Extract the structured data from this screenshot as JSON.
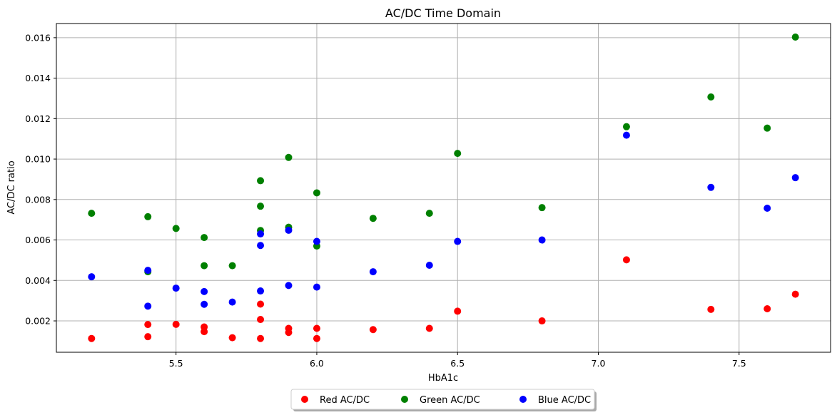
{
  "chart_data": {
    "type": "scatter",
    "title": "AC/DC Time Domain",
    "xlabel": "HbA1c",
    "ylabel": "AC/DC ratio",
    "xlim": [
      5.075,
      7.825
    ],
    "ylim": [
      0.00045,
      0.0167
    ],
    "xticks": [
      5.5,
      6.0,
      6.5,
      7.0,
      7.5
    ],
    "xtick_labels": [
      "5.5",
      "6.0",
      "6.5",
      "7.0",
      "7.5"
    ],
    "yticks": [
      0.002,
      0.004,
      0.006,
      0.008,
      0.01,
      0.012,
      0.014,
      0.016
    ],
    "ytick_labels": [
      "0.002",
      "0.004",
      "0.006",
      "0.008",
      "0.010",
      "0.012",
      "0.014",
      "0.016"
    ],
    "grid": true,
    "legend_position": "bottom-center-outside",
    "series": [
      {
        "name": "Red AC/DC",
        "color": "#ff0000",
        "points": [
          [
            5.2,
            0.00113
          ],
          [
            5.4,
            0.00182
          ],
          [
            5.4,
            0.00122
          ],
          [
            5.5,
            0.00183
          ],
          [
            5.6,
            0.00147
          ],
          [
            5.6,
            0.0017
          ],
          [
            5.7,
            0.00117
          ],
          [
            5.8,
            0.00113
          ],
          [
            5.8,
            0.00283
          ],
          [
            5.8,
            0.00207
          ],
          [
            5.9,
            0.00163
          ],
          [
            5.9,
            0.00143
          ],
          [
            6.0,
            0.00163
          ],
          [
            6.0,
            0.00113
          ],
          [
            6.2,
            0.00157
          ],
          [
            6.4,
            0.00163
          ],
          [
            6.5,
            0.00248
          ],
          [
            6.8,
            0.002
          ],
          [
            7.1,
            0.00502
          ],
          [
            7.4,
            0.00257
          ],
          [
            7.6,
            0.0026
          ],
          [
            7.7,
            0.00332
          ]
        ]
      },
      {
        "name": "Green AC/DC",
        "color": "#008000",
        "points": [
          [
            5.2,
            0.00732
          ],
          [
            5.4,
            0.00715
          ],
          [
            5.4,
            0.00443
          ],
          [
            5.5,
            0.00657
          ],
          [
            5.6,
            0.00612
          ],
          [
            5.6,
            0.00473
          ],
          [
            5.7,
            0.00473
          ],
          [
            5.8,
            0.00893
          ],
          [
            5.8,
            0.00767
          ],
          [
            5.8,
            0.00647
          ],
          [
            5.9,
            0.01008
          ],
          [
            5.9,
            0.00663
          ],
          [
            6.0,
            0.00833
          ],
          [
            6.0,
            0.0057
          ],
          [
            6.2,
            0.00707
          ],
          [
            6.4,
            0.00732
          ],
          [
            6.5,
            0.01028
          ],
          [
            6.8,
            0.0076
          ],
          [
            7.1,
            0.0116
          ],
          [
            7.4,
            0.01307
          ],
          [
            7.6,
            0.01153
          ],
          [
            7.7,
            0.01603
          ]
        ]
      },
      {
        "name": "Blue AC/DC",
        "color": "#0000ff",
        "points": [
          [
            5.2,
            0.00418
          ],
          [
            5.4,
            0.0045
          ],
          [
            5.4,
            0.00273
          ],
          [
            5.5,
            0.00362
          ],
          [
            5.6,
            0.00345
          ],
          [
            5.6,
            0.00282
          ],
          [
            5.7,
            0.00293
          ],
          [
            5.8,
            0.0063
          ],
          [
            5.8,
            0.00573
          ],
          [
            5.8,
            0.00348
          ],
          [
            5.9,
            0.00648
          ],
          [
            5.9,
            0.00375
          ],
          [
            6.0,
            0.00593
          ],
          [
            6.0,
            0.00367
          ],
          [
            6.2,
            0.00443
          ],
          [
            6.4,
            0.00475
          ],
          [
            6.5,
            0.00593
          ],
          [
            6.8,
            0.006
          ],
          [
            7.1,
            0.01118
          ],
          [
            7.4,
            0.0086
          ],
          [
            7.6,
            0.00757
          ],
          [
            7.7,
            0.00908
          ]
        ]
      }
    ]
  }
}
